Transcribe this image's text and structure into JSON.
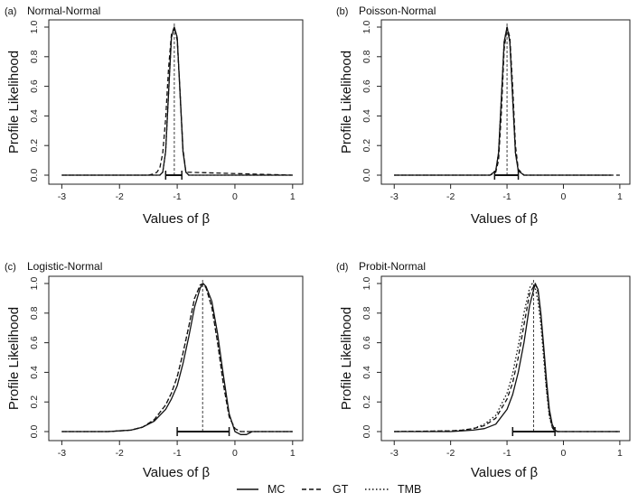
{
  "figure": {
    "legend": [
      {
        "name": "MC",
        "style": "solid"
      },
      {
        "name": "GT",
        "style": "dashed"
      },
      {
        "name": "TMB",
        "style": "dotted"
      }
    ]
  },
  "chart_data": [
    {
      "type": "line",
      "panel_label": "(a)",
      "title": "Normal-Normal",
      "xlabel": "Values of β",
      "ylabel": "Profile Likelihood",
      "xlim": [
        -3.1,
        1.05
      ],
      "ylim": [
        0,
        1
      ],
      "xticks": [
        -3,
        -2,
        -1,
        0,
        1
      ],
      "xtick_labels": [
        "-3",
        "-2",
        "-1",
        "0",
        "1"
      ],
      "yticks": [
        0.0,
        0.2,
        0.4,
        0.6,
        0.8,
        1.0
      ],
      "ytick_labels": [
        "0.0",
        "0.2",
        "0.4",
        "0.6",
        "0.8",
        "1.0"
      ],
      "mle": -1.05,
      "ci": [
        -1.2,
        -0.92
      ],
      "series": [
        {
          "name": "MC",
          "style": "solid",
          "x": [
            -3.0,
            -1.4,
            -1.3,
            -1.25,
            -1.2,
            -1.15,
            -1.1,
            -1.05,
            -1.0,
            -0.95,
            -0.9,
            -0.85,
            -0.8,
            1.0
          ],
          "y": [
            0.0,
            0.0,
            0.0,
            0.02,
            0.16,
            0.55,
            0.93,
            1.0,
            0.93,
            0.55,
            0.16,
            0.02,
            0.0,
            0.0
          ]
        },
        {
          "name": "GT",
          "style": "dashed",
          "x": [
            -3.0,
            -1.5,
            -1.4,
            -1.35,
            -1.3,
            -1.25,
            -1.2,
            -1.15,
            -1.1,
            -1.05,
            -1.0,
            -0.95,
            -0.9,
            -0.85,
            1.0
          ],
          "y": [
            0.0,
            0.0,
            0.01,
            0.02,
            0.05,
            0.15,
            0.38,
            0.72,
            0.95,
            1.0,
            0.91,
            0.55,
            0.18,
            0.02,
            0.0
          ]
        },
        {
          "name": "TMB",
          "style": "dotted",
          "x": [
            -3.0,
            -1.4,
            -1.3,
            -1.25,
            -1.2,
            -1.15,
            -1.1,
            -1.05,
            -1.0,
            -0.95,
            -0.9,
            -0.85,
            -0.8,
            1.0
          ],
          "y": [
            0.0,
            0.0,
            0.0,
            0.02,
            0.16,
            0.55,
            0.93,
            1.0,
            0.93,
            0.55,
            0.16,
            0.02,
            0.0,
            0.0
          ]
        }
      ]
    },
    {
      "type": "line",
      "panel_label": "(b)",
      "title": "Poisson-Normal",
      "xlabel": "Values of β",
      "ylabel": "Profile Likelihood",
      "xlim": [
        -3.1,
        1.05
      ],
      "ylim": [
        0,
        1
      ],
      "xticks": [
        -3,
        -2,
        -1,
        0,
        1
      ],
      "xtick_labels": [
        "-3",
        "-2",
        "-1",
        "0",
        "1"
      ],
      "yticks": [
        0.0,
        0.2,
        0.4,
        0.6,
        0.8,
        1.0
      ],
      "ytick_labels": [
        "0.0",
        "0.2",
        "0.4",
        "0.6",
        "0.8",
        "1.0"
      ],
      "mle": -1.0,
      "ci": [
        -1.22,
        -0.8
      ],
      "series": [
        {
          "name": "MC",
          "style": "solid",
          "x": [
            -3.0,
            -1.3,
            -1.2,
            -1.15,
            -1.1,
            -1.05,
            -1.0,
            -0.95,
            -0.9,
            -0.85,
            -0.8,
            -0.7,
            0.85
          ],
          "y": [
            0.0,
            0.0,
            0.03,
            0.15,
            0.52,
            0.9,
            1.0,
            0.9,
            0.52,
            0.15,
            0.03,
            0.0,
            0.0
          ]
        },
        {
          "name": "GT",
          "style": "dashed",
          "x": [
            -3.0,
            -1.3,
            -1.2,
            -1.15,
            -1.1,
            -1.05,
            -1.0,
            -0.95,
            -0.9,
            -0.85,
            -0.8,
            -0.7,
            1.0
          ],
          "y": [
            0.0,
            0.0,
            0.02,
            0.1,
            0.42,
            0.85,
            1.0,
            0.93,
            0.6,
            0.2,
            0.04,
            0.0,
            0.0
          ]
        },
        {
          "name": "TMB",
          "style": "dotted",
          "x": [
            -3.0,
            -1.3,
            -1.2,
            -1.15,
            -1.1,
            -1.05,
            -1.0,
            -0.95,
            -0.9,
            -0.85,
            -0.8,
            -0.7,
            0.85
          ],
          "y": [
            0.0,
            0.0,
            0.03,
            0.15,
            0.52,
            0.9,
            1.0,
            0.9,
            0.52,
            0.15,
            0.03,
            0.0,
            0.0
          ]
        }
      ]
    },
    {
      "type": "line",
      "panel_label": "(c)",
      "title": "Logistic-Normal",
      "xlabel": "Values of β",
      "ylabel": "Profile Likelihood",
      "xlim": [
        -3.1,
        1.05
      ],
      "ylim": [
        0,
        1
      ],
      "xticks": [
        -3,
        -2,
        -1,
        0,
        1
      ],
      "xtick_labels": [
        "-3",
        "-2",
        "-1",
        "0",
        "1"
      ],
      "yticks": [
        0.0,
        0.2,
        0.4,
        0.6,
        0.8,
        1.0
      ],
      "ytick_labels": [
        "0.0",
        "0.2",
        "0.4",
        "0.6",
        "0.8",
        "1.0"
      ],
      "mle": -0.56,
      "ci": [
        -1.0,
        -0.1
      ],
      "series": [
        {
          "name": "MC",
          "style": "solid",
          "x": [
            -3.0,
            -2.2,
            -2.0,
            -1.8,
            -1.6,
            -1.4,
            -1.2,
            -1.1,
            -1.0,
            -0.9,
            -0.8,
            -0.7,
            -0.6,
            -0.55,
            -0.5,
            -0.4,
            -0.3,
            -0.2,
            -0.1,
            0.0,
            0.1,
            0.2,
            0.3,
            1.0
          ],
          "y": [
            0.0,
            0.0,
            0.005,
            0.01,
            0.03,
            0.07,
            0.15,
            0.22,
            0.31,
            0.46,
            0.64,
            0.84,
            0.97,
            1.0,
            0.98,
            0.88,
            0.66,
            0.38,
            0.12,
            0.0,
            -0.02,
            -0.02,
            0.0,
            0.0
          ]
        },
        {
          "name": "GT",
          "style": "dashed",
          "x": [
            -3.0,
            -2.2,
            -2.0,
            -1.8,
            -1.6,
            -1.4,
            -1.2,
            -1.1,
            -1.0,
            -0.9,
            -0.8,
            -0.7,
            -0.6,
            -0.55,
            -0.5,
            -0.4,
            -0.3,
            -0.2,
            -0.1,
            0.0,
            0.1,
            0.2,
            1.0
          ],
          "y": [
            0.0,
            0.0,
            0.005,
            0.01,
            0.03,
            0.08,
            0.18,
            0.26,
            0.37,
            0.53,
            0.71,
            0.9,
            0.99,
            1.0,
            0.97,
            0.84,
            0.6,
            0.32,
            0.1,
            0.02,
            0.0,
            0.0,
            0.0
          ]
        },
        {
          "name": "TMB",
          "style": "dotted",
          "x": [
            -3.0,
            -2.2,
            -2.0,
            -1.8,
            -1.6,
            -1.4,
            -1.2,
            -1.1,
            -1.0,
            -0.9,
            -0.8,
            -0.7,
            -0.6,
            -0.55,
            -0.5,
            -0.4,
            -0.3,
            -0.2,
            -0.1,
            0.0,
            0.1,
            0.2,
            1.0
          ],
          "y": [
            0.0,
            0.0,
            0.005,
            0.01,
            0.03,
            0.08,
            0.18,
            0.26,
            0.37,
            0.53,
            0.71,
            0.9,
            0.99,
            1.0,
            0.97,
            0.84,
            0.6,
            0.32,
            0.1,
            0.02,
            0.0,
            0.0,
            0.0
          ]
        }
      ]
    },
    {
      "type": "line",
      "panel_label": "(d)",
      "title": "Probit-Normal",
      "xlabel": "Values of β",
      "ylabel": "Profile Likelihood",
      "xlim": [
        -3.1,
        1.05
      ],
      "ylim": [
        0,
        1
      ],
      "xticks": [
        -3,
        -2,
        -1,
        0,
        1
      ],
      "xtick_labels": [
        "-3",
        "-2",
        "-1",
        "0",
        "1"
      ],
      "yticks": [
        0.0,
        0.2,
        0.4,
        0.6,
        0.8,
        1.0
      ],
      "ytick_labels": [
        "0.0",
        "0.2",
        "0.4",
        "0.6",
        "0.8",
        "1.0"
      ],
      "mle": -0.53,
      "ci": [
        -0.9,
        -0.15
      ],
      "series": [
        {
          "name": "MC",
          "style": "solid",
          "x": [
            -3.0,
            -2.0,
            -1.8,
            -1.6,
            -1.4,
            -1.2,
            -1.0,
            -0.9,
            -0.8,
            -0.7,
            -0.6,
            -0.5,
            -0.45,
            -0.4,
            -0.35,
            -0.3,
            -0.25,
            -0.2,
            -0.15,
            -0.1,
            1.0
          ],
          "y": [
            0.0,
            0.0,
            0.005,
            0.01,
            0.02,
            0.05,
            0.15,
            0.25,
            0.4,
            0.6,
            0.85,
            1.0,
            0.96,
            0.8,
            0.58,
            0.35,
            0.15,
            0.05,
            0.01,
            0.0,
            0.0
          ]
        },
        {
          "name": "GT",
          "style": "dashed",
          "x": [
            -3.0,
            -2.0,
            -1.8,
            -1.6,
            -1.4,
            -1.2,
            -1.0,
            -0.9,
            -0.8,
            -0.7,
            -0.6,
            -0.5,
            -0.45,
            -0.4,
            -0.35,
            -0.3,
            -0.25,
            -0.2,
            -0.15,
            1.0
          ],
          "y": [
            0.0,
            0.005,
            0.01,
            0.02,
            0.04,
            0.09,
            0.22,
            0.33,
            0.5,
            0.72,
            0.93,
            1.0,
            0.94,
            0.78,
            0.55,
            0.3,
            0.12,
            0.03,
            0.0,
            0.0
          ]
        },
        {
          "name": "TMB",
          "style": "dotted",
          "x": [
            -3.0,
            -2.0,
            -1.8,
            -1.6,
            -1.4,
            -1.2,
            -1.0,
            -0.9,
            -0.8,
            -0.7,
            -0.6,
            -0.55,
            -0.5,
            -0.45,
            -0.4,
            -0.35,
            -0.3,
            -0.25,
            -0.2,
            -0.15,
            1.0
          ],
          "y": [
            0.0,
            0.005,
            0.01,
            0.02,
            0.05,
            0.11,
            0.26,
            0.39,
            0.58,
            0.8,
            0.97,
            1.0,
            0.97,
            0.88,
            0.72,
            0.5,
            0.28,
            0.1,
            0.03,
            0.0,
            0.0
          ]
        }
      ]
    }
  ]
}
